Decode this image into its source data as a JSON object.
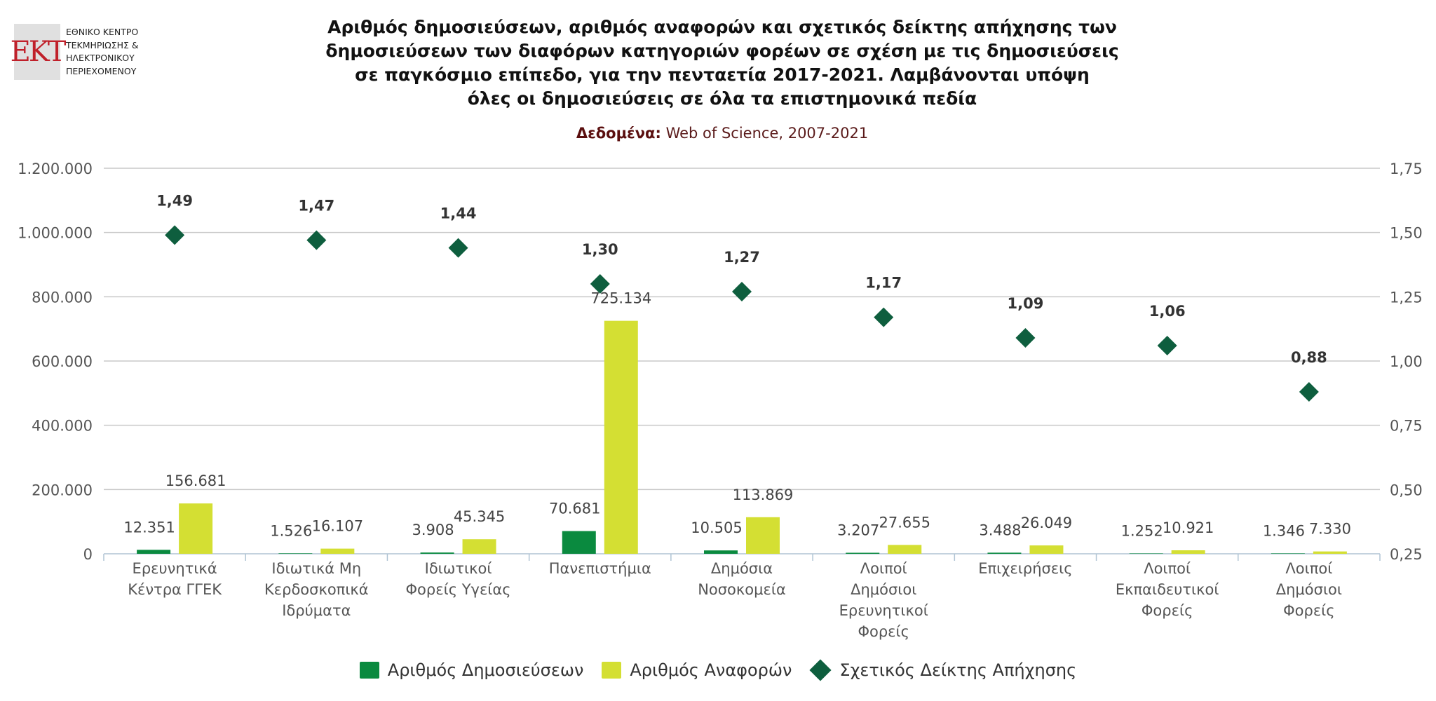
{
  "logo": {
    "mark": "EKT",
    "lines": [
      "ΕΘΝΙΚΟ ΚΕΝΤΡΟ",
      "ΤΕΚΜΗΡΙΩΣΗΣ &",
      "ΗΛΕΚΤΡΟΝΙΚΟΥ",
      "ΠΕΡΙΕΧΟΜΕΝΟΥ"
    ]
  },
  "chart_data": {
    "type": "bar",
    "title_lines": [
      "Αριθμός δημοσιεύσεων, αριθμός αναφορών και σχετικός δείκτης απήχησης των",
      "δημοσιεύσεων των διαφόρων κατηγοριών φορέων σε σχέση με τις δημοσιεύσεις",
      "σε παγκόσμιο επίπεδο, για την πενταετία 2017-2021. Λαμβάνονται υπόψη",
      "όλες οι δημοσιεύσεις σε όλα τα επιστημονικά πεδία"
    ],
    "subtitle_label": "Δεδομένα:",
    "subtitle_value": "Web of Science, 2007-2021",
    "categories": [
      [
        "Ερευνητικά",
        "Κέντρα ΓΓΕΚ"
      ],
      [
        "Ιδιωτικά Μη",
        "Κερδοσκοπικά",
        "Ιδρύματα"
      ],
      [
        "Ιδιωτικοί",
        "Φορείς Υγείας"
      ],
      [
        "Πανεπιστήμια"
      ],
      [
        "Δημόσια",
        "Νοσοκομεία"
      ],
      [
        "Λοιποί",
        "Δημόσιοι",
        "Ερευνητικοί",
        "Φορείς"
      ],
      [
        "Επιχειρήσεις"
      ],
      [
        "Λοιποί",
        "Εκπαιδευτικοί",
        "Φορείς"
      ],
      [
        "Λοιποί",
        "Δημόσιοι",
        "Φορείς"
      ]
    ],
    "series": [
      {
        "name": "Αριθμός Δημοσιεύσεων",
        "type": "bar",
        "axis": "left",
        "color": "#0a8a3f",
        "values": [
          12351,
          1526,
          3908,
          70681,
          10505,
          3207,
          3488,
          1252,
          1346
        ],
        "labels": [
          "12.351",
          "1.526",
          "3.908",
          "70.681",
          "10.505",
          "3.207",
          "3.488",
          "1.252",
          "1.346"
        ]
      },
      {
        "name": "Αριθμός Αναφορών",
        "type": "bar",
        "axis": "left",
        "color": "#d4df33",
        "values": [
          156681,
          16107,
          45345,
          725134,
          113869,
          27655,
          26049,
          10921,
          7330
        ],
        "labels": [
          "156.681",
          "16.107",
          "45.345",
          "725.134",
          "113.869",
          "27.655",
          "26.049",
          "10.921",
          "7.330"
        ]
      },
      {
        "name": "Σχετικός Δείκτης Απήχησης",
        "type": "scatter",
        "marker": "diamond",
        "axis": "right",
        "color": "#0e5e3e",
        "values": [
          1.49,
          1.47,
          1.44,
          1.3,
          1.27,
          1.17,
          1.09,
          1.06,
          0.88
        ],
        "labels": [
          "1,49",
          "1,47",
          "1,44",
          "1,30",
          "1,27",
          "1,17",
          "1,09",
          "1,06",
          "0,88"
        ]
      }
    ],
    "y_left": {
      "ylim": [
        0,
        1200000
      ],
      "ticks": [
        0,
        200000,
        400000,
        600000,
        800000,
        1000000,
        1200000
      ],
      "tick_labels": [
        "0",
        "200.000",
        "400.000",
        "600.000",
        "800.000",
        "1.000.000",
        "1.200.000"
      ]
    },
    "y_right": {
      "ylim": [
        0.25,
        1.75
      ],
      "ticks": [
        0.25,
        0.5,
        0.75,
        1.0,
        1.25,
        1.5,
        1.75
      ],
      "tick_labels": [
        "0,25",
        "0,50",
        "0,75",
        "1,00",
        "1,25",
        "1,50",
        "1,75"
      ]
    },
    "grid": true,
    "legend_position": "bottom-center"
  }
}
